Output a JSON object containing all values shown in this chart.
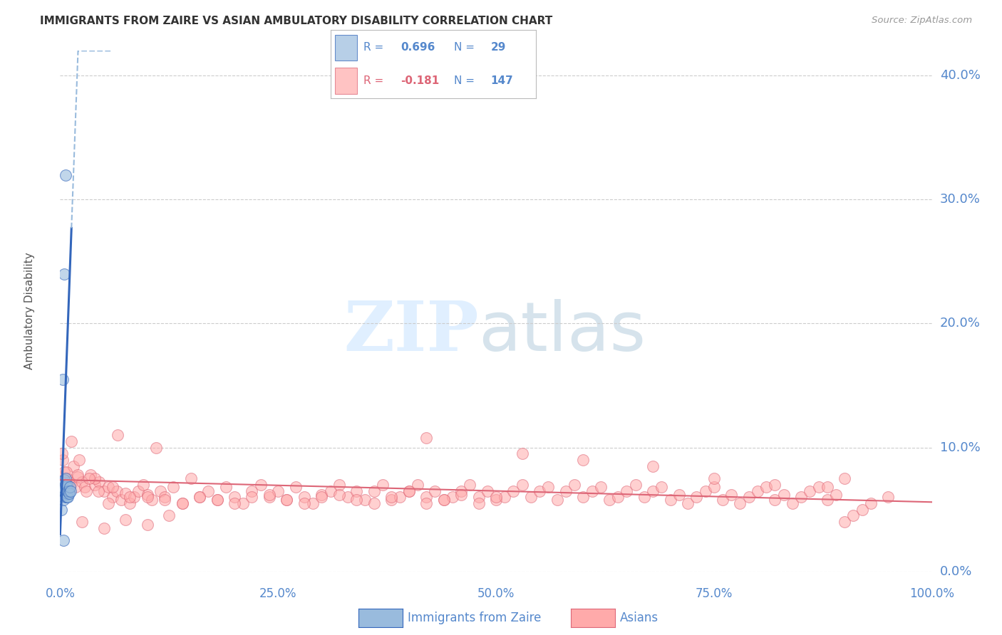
{
  "title": "IMMIGRANTS FROM ZAIRE VS ASIAN AMBULATORY DISABILITY CORRELATION CHART",
  "source": "Source: ZipAtlas.com",
  "ylabel": "Ambulatory Disability",
  "blue_color": "#99BBDD",
  "pink_color": "#FFAAAA",
  "line_blue": "#3366BB",
  "line_pink": "#DD6677",
  "axis_label_color": "#5588CC",
  "title_color": "#333333",
  "grid_color": "#CCCCCC",
  "bg_color": "#FFFFFF",
  "ylim": [
    0,
    0.42
  ],
  "xlim": [
    0.0,
    1.0
  ],
  "yticks": [
    0.0,
    0.1,
    0.2,
    0.3,
    0.4
  ],
  "xticks": [
    0.0,
    0.25,
    0.5,
    0.75,
    1.0
  ],
  "xtick_labels": [
    "0.0%",
    "25.0%",
    "50.0%",
    "75.0%",
    "100.0%"
  ],
  "ytick_labels": [
    "0.0%",
    "10.0%",
    "20.0%",
    "30.0%",
    "40.0%"
  ],
  "blue_x": [
    0.001,
    0.002,
    0.003,
    0.003,
    0.004,
    0.004,
    0.004,
    0.005,
    0.005,
    0.005,
    0.006,
    0.006,
    0.006,
    0.007,
    0.007,
    0.007,
    0.008,
    0.008,
    0.008,
    0.009,
    0.009,
    0.01,
    0.01,
    0.011,
    0.012,
    0.003,
    0.005,
    0.006,
    0.004
  ],
  "blue_y": [
    0.05,
    0.065,
    0.063,
    0.07,
    0.06,
    0.068,
    0.058,
    0.065,
    0.067,
    0.074,
    0.062,
    0.07,
    0.075,
    0.06,
    0.065,
    0.068,
    0.06,
    0.063,
    0.07,
    0.06,
    0.065,
    0.065,
    0.063,
    0.068,
    0.065,
    0.155,
    0.24,
    0.32,
    0.025
  ],
  "pink_x": [
    0.003,
    0.005,
    0.008,
    0.01,
    0.012,
    0.015,
    0.018,
    0.02,
    0.025,
    0.028,
    0.03,
    0.035,
    0.04,
    0.045,
    0.05,
    0.055,
    0.06,
    0.065,
    0.07,
    0.075,
    0.08,
    0.085,
    0.09,
    0.095,
    0.1,
    0.105,
    0.11,
    0.115,
    0.12,
    0.13,
    0.14,
    0.15,
    0.16,
    0.17,
    0.18,
    0.19,
    0.2,
    0.21,
    0.22,
    0.23,
    0.24,
    0.25,
    0.26,
    0.27,
    0.28,
    0.29,
    0.3,
    0.31,
    0.32,
    0.33,
    0.34,
    0.35,
    0.36,
    0.37,
    0.38,
    0.39,
    0.4,
    0.41,
    0.42,
    0.43,
    0.44,
    0.45,
    0.46,
    0.47,
    0.48,
    0.49,
    0.5,
    0.51,
    0.52,
    0.53,
    0.54,
    0.55,
    0.56,
    0.57,
    0.58,
    0.59,
    0.6,
    0.61,
    0.62,
    0.63,
    0.64,
    0.65,
    0.66,
    0.67,
    0.68,
    0.69,
    0.7,
    0.71,
    0.72,
    0.73,
    0.74,
    0.75,
    0.76,
    0.77,
    0.78,
    0.79,
    0.8,
    0.81,
    0.82,
    0.83,
    0.84,
    0.85,
    0.86,
    0.87,
    0.88,
    0.89,
    0.9,
    0.91,
    0.92,
    0.93,
    0.02,
    0.04,
    0.06,
    0.08,
    0.1,
    0.12,
    0.14,
    0.16,
    0.18,
    0.2,
    0.22,
    0.24,
    0.26,
    0.28,
    0.3,
    0.32,
    0.34,
    0.36,
    0.38,
    0.4,
    0.42,
    0.44,
    0.46,
    0.48,
    0.5,
    0.002,
    0.007,
    0.013,
    0.022,
    0.033,
    0.044,
    0.055,
    0.066,
    0.42,
    0.53,
    0.6,
    0.68,
    0.75,
    0.82,
    0.88,
    0.9,
    0.95,
    0.025,
    0.05,
    0.075,
    0.1,
    0.125
  ],
  "pink_y": [
    0.09,
    0.08,
    0.075,
    0.072,
    0.07,
    0.085,
    0.068,
    0.076,
    0.072,
    0.068,
    0.065,
    0.078,
    0.07,
    0.072,
    0.065,
    0.068,
    0.06,
    0.065,
    0.058,
    0.063,
    0.055,
    0.06,
    0.065,
    0.07,
    0.062,
    0.058,
    0.1,
    0.065,
    0.06,
    0.068,
    0.055,
    0.075,
    0.06,
    0.065,
    0.058,
    0.068,
    0.06,
    0.055,
    0.065,
    0.07,
    0.06,
    0.065,
    0.058,
    0.068,
    0.06,
    0.055,
    0.062,
    0.065,
    0.07,
    0.06,
    0.065,
    0.058,
    0.065,
    0.07,
    0.058,
    0.06,
    0.065,
    0.07,
    0.06,
    0.065,
    0.058,
    0.06,
    0.065,
    0.07,
    0.06,
    0.065,
    0.058,
    0.06,
    0.065,
    0.07,
    0.06,
    0.065,
    0.068,
    0.058,
    0.065,
    0.07,
    0.06,
    0.065,
    0.068,
    0.058,
    0.06,
    0.065,
    0.07,
    0.06,
    0.065,
    0.068,
    0.058,
    0.062,
    0.055,
    0.06,
    0.065,
    0.068,
    0.058,
    0.062,
    0.055,
    0.06,
    0.065,
    0.068,
    0.058,
    0.062,
    0.055,
    0.06,
    0.065,
    0.068,
    0.058,
    0.062,
    0.04,
    0.045,
    0.05,
    0.055,
    0.078,
    0.075,
    0.068,
    0.06,
    0.06,
    0.058,
    0.055,
    0.06,
    0.058,
    0.055,
    0.06,
    0.062,
    0.058,
    0.055,
    0.06,
    0.062,
    0.058,
    0.055,
    0.06,
    0.065,
    0.055,
    0.058,
    0.062,
    0.055,
    0.06,
    0.095,
    0.08,
    0.105,
    0.09,
    0.075,
    0.065,
    0.055,
    0.11,
    0.108,
    0.095,
    0.09,
    0.085,
    0.075,
    0.07,
    0.068,
    0.075,
    0.06,
    0.04,
    0.035,
    0.042,
    0.038,
    0.045
  ]
}
